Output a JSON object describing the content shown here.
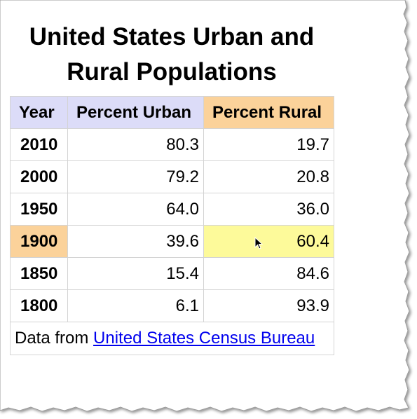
{
  "title_line1": "United States Urban and",
  "title_line2": "Rural Populations",
  "columns": {
    "year": "Year",
    "urban": "Percent Urban",
    "rural": "Percent Rural"
  },
  "rows": [
    {
      "year": "2010",
      "urban": "80.3",
      "rural": "19.7"
    },
    {
      "year": "2000",
      "urban": "79.2",
      "rural": "20.8"
    },
    {
      "year": "1950",
      "urban": "64.0",
      "rural": "36.0"
    },
    {
      "year": "1900",
      "urban": "39.6",
      "rural": "60.4"
    },
    {
      "year": "1850",
      "urban": "15.4",
      "rural": "84.6"
    },
    {
      "year": "1800",
      "urban": "6.1",
      "rural": "93.9"
    }
  ],
  "source": {
    "prefix": "Data from",
    "link_text": "United States Census Bureau"
  },
  "colors": {
    "header_blue": "#dcdcf8",
    "header_orange": "#fbd29a",
    "highlight_yellow": "#fdfa9a",
    "link": "#0000ee"
  }
}
